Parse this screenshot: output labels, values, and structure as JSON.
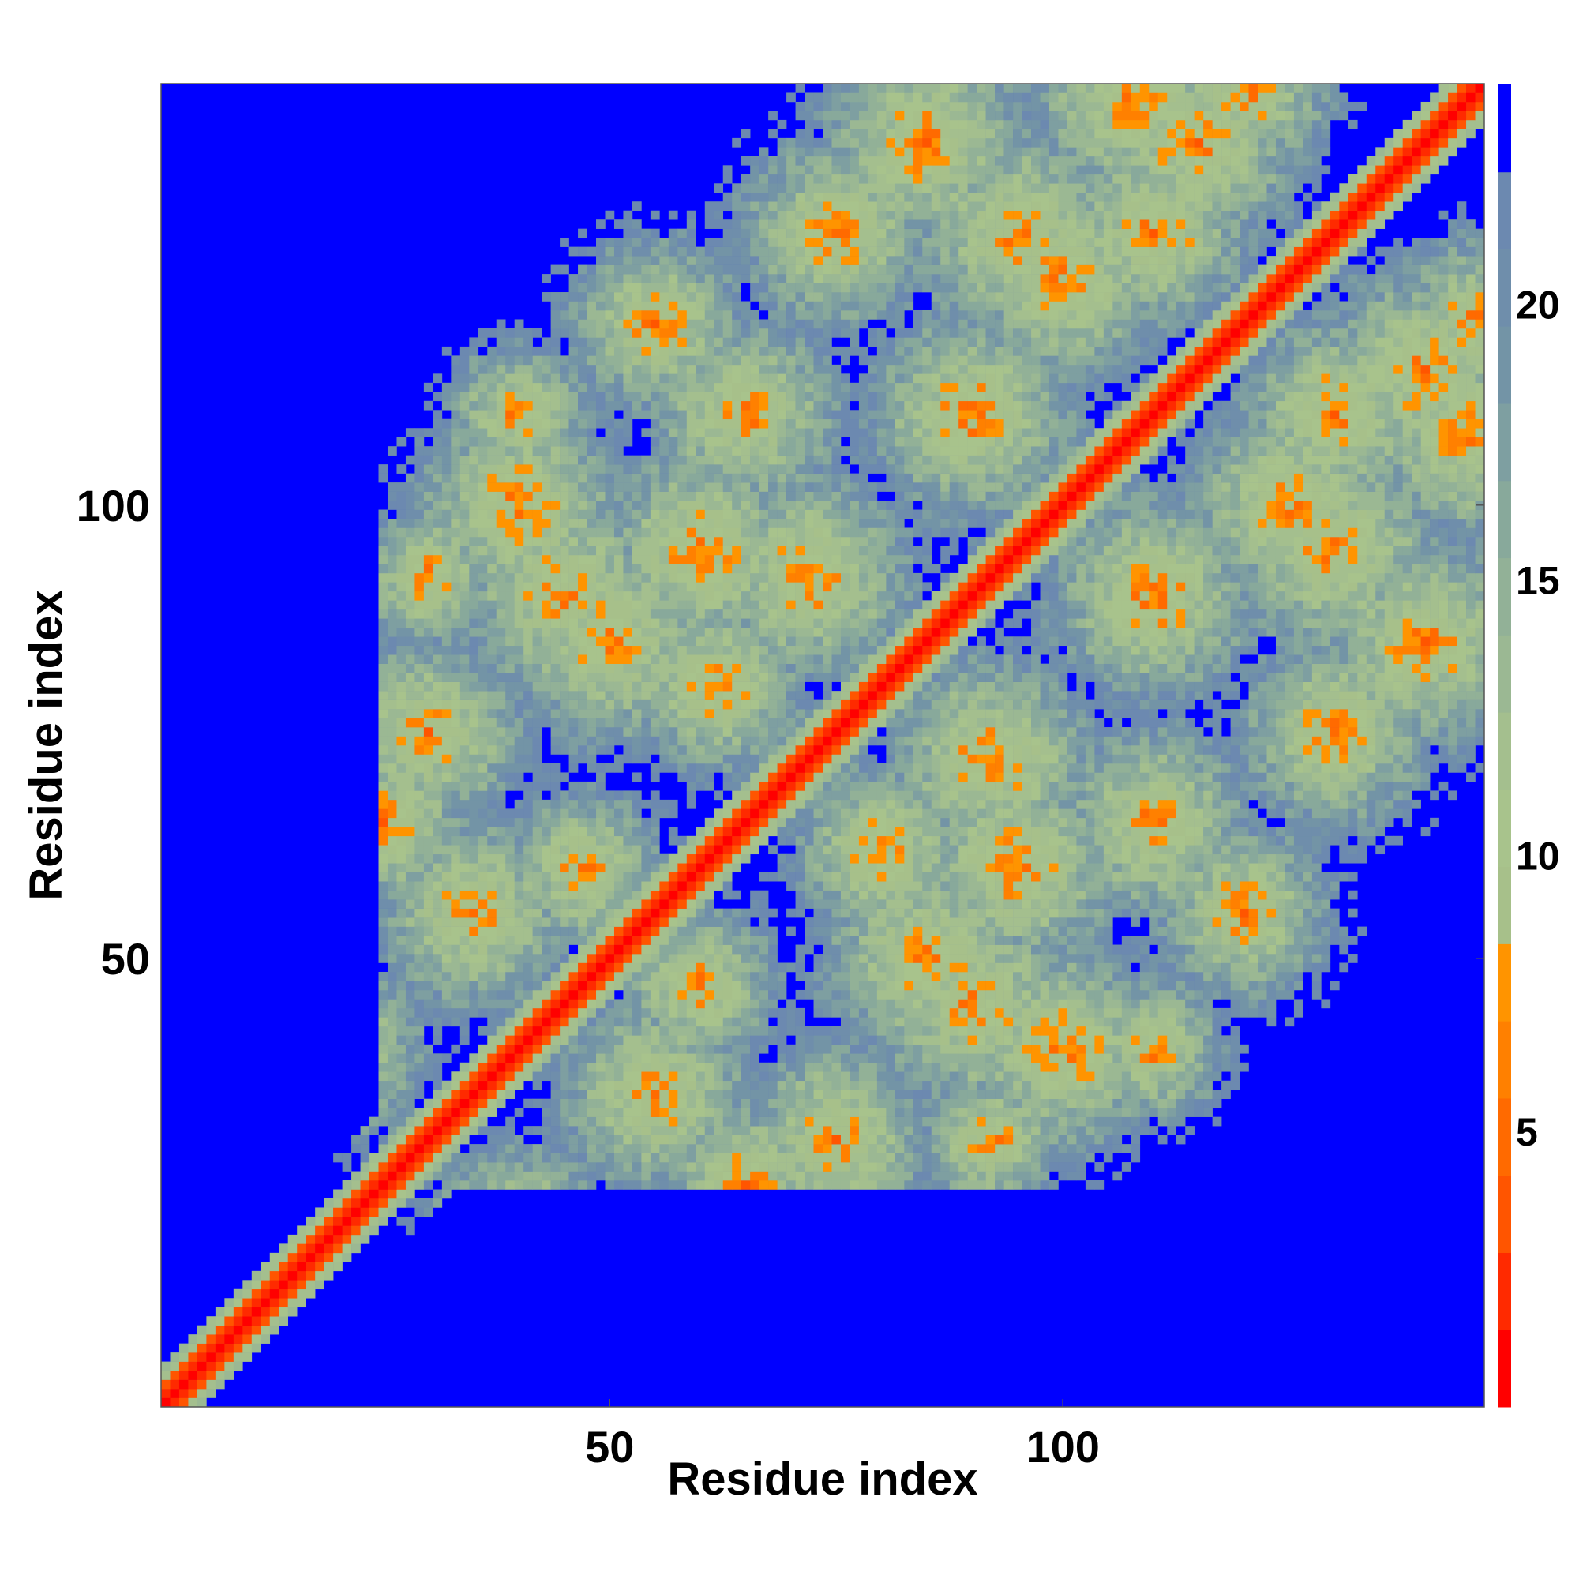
{
  "chart_data": {
    "type": "heatmap",
    "description_of_values": "residue-residue distance map; values above the upper colour bound are shown blue; diagonal band is 0-1",
    "xlabel": "Residue index",
    "ylabel": "Residue index",
    "x_range": [
      1,
      146
    ],
    "y_range": [
      1,
      146
    ],
    "x_ticks": [
      50,
      100
    ],
    "y_ticks": [
      50,
      100
    ],
    "colorbar": {
      "range": [
        0,
        24
      ],
      "ticks": [
        5,
        10,
        15,
        20
      ],
      "bins": [
        {
          "from": 0,
          "to": 1.4,
          "color": "#ff0000"
        },
        {
          "from": 1.4,
          "to": 2.8,
          "color": "#ff2a00"
        },
        {
          "from": 2.8,
          "to": 4.2,
          "color": "#ff5500"
        },
        {
          "from": 4.2,
          "to": 5.6,
          "color": "#ff6a00"
        },
        {
          "from": 5.6,
          "to": 7.0,
          "color": "#ff8000"
        },
        {
          "from": 7.0,
          "to": 8.4,
          "color": "#ff9400"
        },
        {
          "from": 8.4,
          "to": 9.8,
          "color": "#a7c08a"
        },
        {
          "from": 9.8,
          "to": 11.2,
          "color": "#a8c38c"
        },
        {
          "from": 11.2,
          "to": 12.6,
          "color": "#a4bf8e"
        },
        {
          "from": 12.6,
          "to": 14.0,
          "color": "#9bb893"
        },
        {
          "from": 14.0,
          "to": 15.4,
          "color": "#92b197"
        },
        {
          "from": 15.4,
          "to": 16.8,
          "color": "#88a99b"
        },
        {
          "from": 16.8,
          "to": 18.2,
          "color": "#7e9fa1"
        },
        {
          "from": 18.2,
          "to": 19.6,
          "color": "#7394a6"
        },
        {
          "from": 19.6,
          "to": 21.0,
          "color": "#6f8eab"
        },
        {
          "from": 21.0,
          "to": 22.4,
          "color": "#6c89b0"
        },
        {
          "from": 22.4,
          "to": 24,
          "color": "#0000ff"
        }
      ]
    },
    "background_color": "#0000ff",
    "cluster_regions_note": "approximate regions of close contact estimated from image",
    "grid": false,
    "legend": "colorbar-right"
  }
}
